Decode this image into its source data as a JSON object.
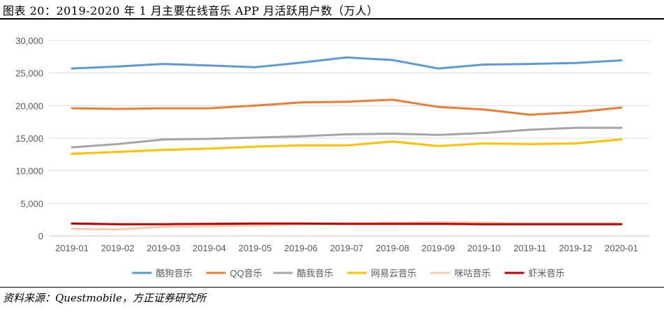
{
  "figure": {
    "title": "图表 20：2019-2020 年 1 月主要在线音乐 APP 月活跃用户数（万人）",
    "source": "资料来源：Questmobile，方正证券研究所"
  },
  "chart_data": {
    "type": "line",
    "title": "",
    "xlabel": "",
    "ylabel": "",
    "ylim": [
      0,
      30000
    ],
    "yticks": [
      0,
      5000,
      10000,
      15000,
      20000,
      25000,
      30000
    ],
    "ytick_labels": [
      "0",
      "5,000",
      "10,000",
      "15,000",
      "20,000",
      "25,000",
      "30,000"
    ],
    "grid": true,
    "legend_position": "bottom",
    "categories": [
      "2019-01",
      "2019-02",
      "2019-03",
      "2019-04",
      "2019-05",
      "2019-06",
      "2019-07",
      "2019-08",
      "2019-09",
      "2019-10",
      "2019-11",
      "2019-12",
      "2020-01"
    ],
    "series": [
      {
        "name": "酷狗音乐",
        "color": "#5B9BD5",
        "values": [
          25700,
          26000,
          26400,
          26150,
          25900,
          26600,
          27400,
          27000,
          25700,
          26300,
          26400,
          26550,
          26950
        ]
      },
      {
        "name": "QQ音乐",
        "color": "#ED7D31",
        "values": [
          19600,
          19500,
          19600,
          19600,
          20000,
          20500,
          20600,
          20900,
          19800,
          19400,
          18600,
          19000,
          19700
        ]
      },
      {
        "name": "酷我音乐",
        "color": "#A5A5A5",
        "values": [
          13600,
          14100,
          14800,
          14900,
          15100,
          15300,
          15600,
          15700,
          15500,
          15800,
          16300,
          16600,
          16600
        ]
      },
      {
        "name": "网易云音乐",
        "color": "#FFC000",
        "values": [
          12600,
          12900,
          13200,
          13400,
          13700,
          13900,
          13900,
          14500,
          13800,
          14200,
          14100,
          14200,
          14800
        ]
      },
      {
        "name": "咪咕音乐",
        "color": "#F8CBAD",
        "values": [
          1100,
          1000,
          1400,
          1500,
          1600,
          1800,
          1900,
          2000,
          2100,
          2000,
          1900,
          1900,
          1900
        ]
      },
      {
        "name": "虾米音乐",
        "color": "#C00000",
        "values": [
          1900,
          1800,
          1800,
          1850,
          1900,
          1900,
          1850,
          1850,
          1850,
          1800,
          1800,
          1800,
          1800
        ]
      }
    ]
  }
}
